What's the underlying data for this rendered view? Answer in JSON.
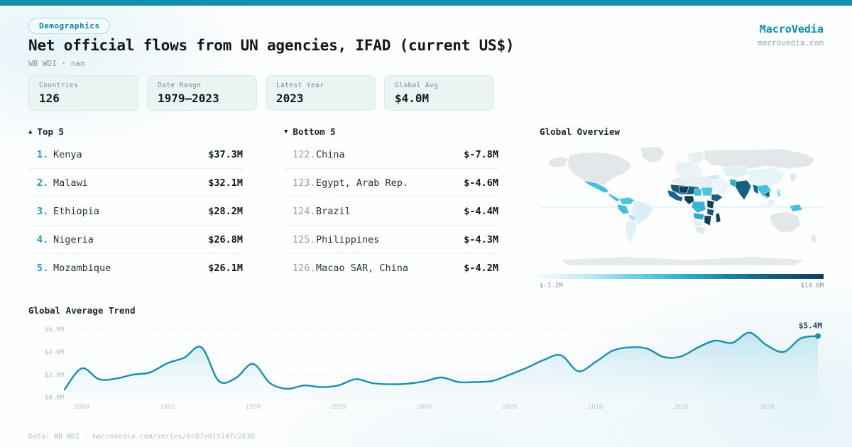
{
  "header": {
    "badge": "Demographics",
    "title": "Net official flows from UN agencies, IFAD (current US$)",
    "subtitle": "WB WDI · nan",
    "brand": "MacroVedia",
    "brand_url": "macrovedia.com"
  },
  "stats": [
    {
      "label": "Countries",
      "value": "126"
    },
    {
      "label": "Date Range",
      "value": "1979—2023"
    },
    {
      "label": "Latest Year",
      "value": "2023"
    },
    {
      "label": "Global Avg",
      "value": "$4.0M"
    }
  ],
  "top5": {
    "arrow": "▲",
    "title": "Top 5",
    "rows": [
      {
        "rank": "1.",
        "name": "Kenya",
        "value": "$37.3M"
      },
      {
        "rank": "2.",
        "name": "Malawi",
        "value": "$32.1M"
      },
      {
        "rank": "3.",
        "name": "Ethiopia",
        "value": "$28.2M"
      },
      {
        "rank": "4.",
        "name": "Nigeria",
        "value": "$26.8M"
      },
      {
        "rank": "5.",
        "name": "Mozambique",
        "value": "$26.1M"
      }
    ]
  },
  "bottom5": {
    "arrow": "▼",
    "title": "Bottom 5",
    "rows": [
      {
        "rank": "122.",
        "name": "China",
        "value": "$-7.8M"
      },
      {
        "rank": "123.",
        "name": "Egypt, Arab Rep.",
        "value": "$-4.6M"
      },
      {
        "rank": "124.",
        "name": "Brazil",
        "value": "$-4.4M"
      },
      {
        "rank": "125.",
        "name": "Philippines",
        "value": "$-4.3M"
      },
      {
        "rank": "126.",
        "name": "Macao SAR, China",
        "value": "$-4.2M"
      }
    ]
  },
  "map": {
    "title": "Global Overview",
    "scale_min": "$-1.2M",
    "scale_max": "$14.6M",
    "colors": {
      "no_data": "#e3e7ea",
      "low": "#eaf7fa",
      "mid": "#45c0dc",
      "high": "#16607f",
      "highest": "#123f58"
    }
  },
  "chart_data": {
    "type": "area",
    "title": "Global Average Trend",
    "x": [
      1979,
      1980,
      1981,
      1982,
      1983,
      1984,
      1985,
      1986,
      1987,
      1988,
      1989,
      1990,
      1991,
      1992,
      1993,
      1994,
      1995,
      1996,
      1997,
      1998,
      1999,
      2000,
      2001,
      2002,
      2003,
      2004,
      2005,
      2006,
      2007,
      2008,
      2009,
      2010,
      2011,
      2012,
      2013,
      2014,
      2015,
      2016,
      2017,
      2018,
      2019,
      2020,
      2021,
      2022,
      2023
    ],
    "values": [
      0.7,
      2.55,
      1.6,
      1.65,
      2.0,
      2.2,
      3.0,
      3.5,
      4.4,
      1.45,
      1.7,
      2.95,
      1.25,
      0.75,
      1.05,
      0.9,
      1.05,
      1.6,
      1.25,
      1.15,
      1.2,
      1.4,
      1.75,
      1.35,
      1.35,
      1.45,
      2.0,
      2.6,
      3.3,
      3.7,
      2.3,
      3.1,
      4.1,
      4.4,
      4.3,
      3.55,
      3.6,
      4.4,
      5.0,
      4.8,
      5.7,
      4.6,
      4.0,
      5.2,
      5.4
    ],
    "ylim": [
      0,
      6
    ],
    "ytick_values": [
      0,
      2,
      4,
      6
    ],
    "ytick_labels": [
      "$0.0M",
      "$2.0M",
      "$4.0M",
      "$6.0M"
    ],
    "xticks": [
      1980,
      1985,
      1990,
      1995,
      2000,
      2005,
      2010,
      2015,
      2020
    ],
    "end_label": "$5.4M",
    "line_color": "#1b8fae",
    "grid": true,
    "legend": "none"
  },
  "footer": {
    "text": "Data: WB WDI · macrovedia.com/series/6c07e01514fc2b30"
  }
}
